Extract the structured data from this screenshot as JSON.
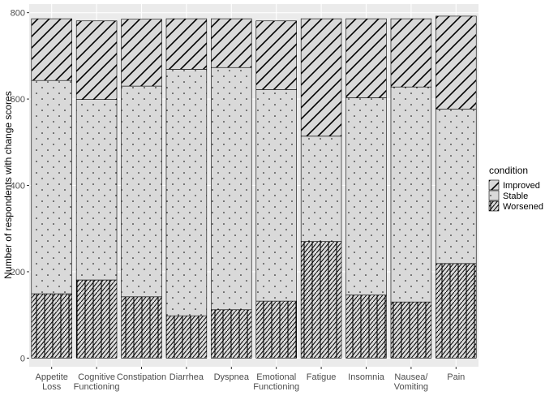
{
  "chart_data": {
    "type": "stacked_bar",
    "y_label": "Number of respondents with change scores",
    "legend_title": "condition",
    "categories": [
      "Appetite\nLoss",
      "Cognitive\nFunctioning",
      "Constipation",
      "Diarrhea",
      "Dyspnea",
      "Emotional\nFunctioning",
      "Fatigue",
      "Insomnia",
      "Nausea/\nVomiting",
      "Pain"
    ],
    "series": [
      {
        "name": "Improved",
        "color": "#d9d9d9",
        "pattern": "diagonal",
        "values": [
          143,
          182,
          155,
          117,
          113,
          159,
          272,
          183,
          158,
          215
        ]
      },
      {
        "name": "Stable",
        "color": "#d9d9d9",
        "pattern": "dots",
        "values": [
          494,
          418,
          488,
          571,
          561,
          490,
          244,
          457,
          498,
          358
        ]
      },
      {
        "name": "Worsened",
        "color": "#d9d9d9",
        "pattern": "zigzag",
        "values": [
          149,
          181,
          142,
          98,
          112,
          132,
          270,
          146,
          130,
          219
        ]
      }
    ],
    "ylim": [
      -20,
      820
    ],
    "yticks": [
      0,
      200,
      400,
      600,
      800
    ],
    "grid": true,
    "legend": "right"
  }
}
